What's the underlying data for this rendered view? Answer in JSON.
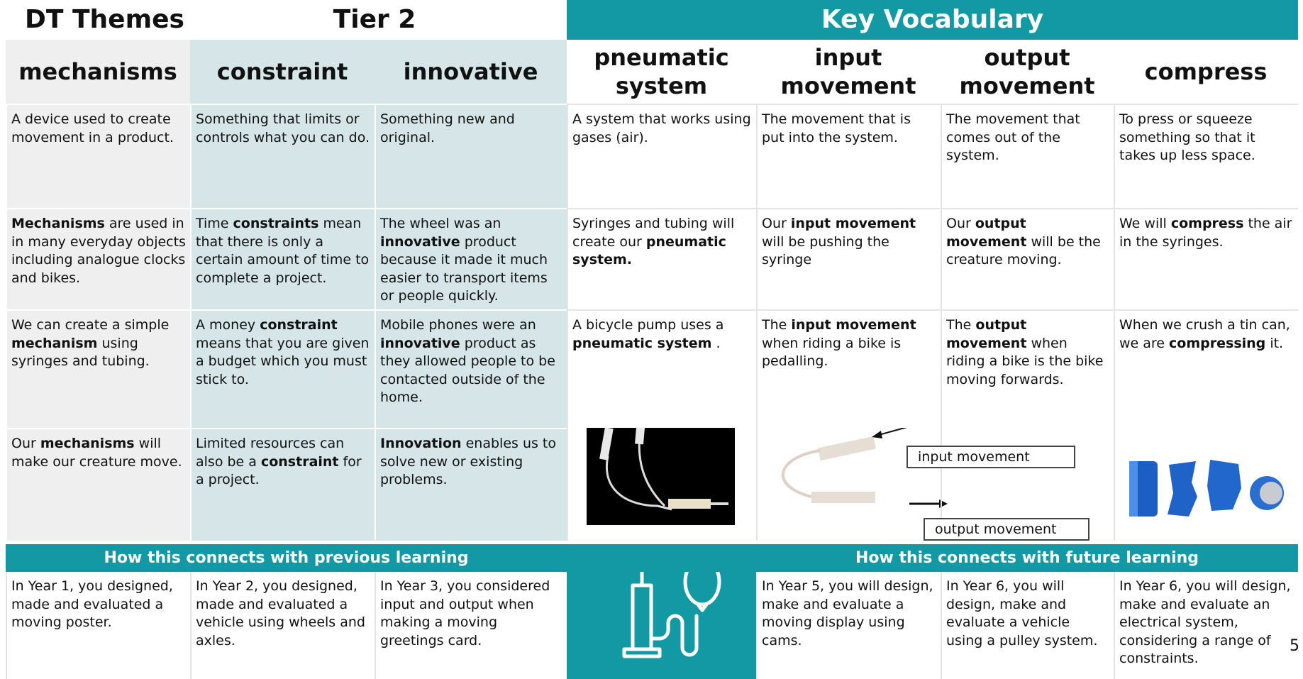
{
  "header": {
    "dt_themes": "DT Themes",
    "tier2": "Tier 2",
    "key_vocabulary": "Key Vocabulary"
  },
  "columns": [
    "mechanisms",
    "constraint",
    "innovative",
    "pneumatic system",
    "input movement",
    "output movement",
    "compress"
  ],
  "rows": [
    [
      [
        "A device used to create movement in a product."
      ],
      [
        "Something that limits or controls what you can do."
      ],
      [
        "Something new and original."
      ],
      [
        "A system that works using gases (air)."
      ],
      [
        "The movement that is put into the system."
      ],
      [
        "The movement that comes out of the system."
      ],
      [
        "To press or squeeze something so that it takes up less space."
      ]
    ],
    [
      [
        {
          "text": "Mechanisms",
          "bold": true
        },
        " are used in in many everyday objects including analogue clocks and bikes."
      ],
      [
        "Time ",
        {
          "text": "constraints",
          "bold": true
        },
        " mean that there is only a certain amount of time to complete a project."
      ],
      [
        "The wheel was an ",
        {
          "text": "innovative",
          "bold": true
        },
        " product because it made it much easier to transport items or people quickly."
      ],
      [
        "Syringes and tubing will create our ",
        {
          "text": "pneumatic system.",
          "bold": true
        }
      ],
      [
        "Our ",
        {
          "text": "input movement",
          "bold": true
        },
        " will be pushing the syringe"
      ],
      [
        "Our ",
        {
          "text": "output movement",
          "bold": true
        },
        " will be the creature moving."
      ],
      [
        "We will ",
        {
          "text": "compress",
          "bold": true
        },
        " the air in the syringes."
      ]
    ],
    [
      [
        "We can create a simple ",
        {
          "text": "mechanism",
          "bold": true
        },
        " using syringes and tubing."
      ],
      [
        "A money ",
        {
          "text": "constraint",
          "bold": true
        },
        " means that you are given a budget which you must stick to."
      ],
      [
        "Mobile phones were an ",
        {
          "text": "innovative",
          "bold": true
        },
        " product as they allowed people to be contacted outside of the home."
      ],
      [
        "A bicycle pump uses a ",
        {
          "text": "pneumatic system",
          "bold": true
        },
        " ."
      ],
      [
        "The ",
        {
          "text": "input movement",
          "bold": true
        },
        " when riding a bike is pedalling."
      ],
      [
        "The ",
        {
          "text": "output movement",
          "bold": true
        },
        " when riding a bike is the bike moving forwards."
      ],
      [
        "When we crush a tin can, we are ",
        {
          "text": "compressing",
          "bold": true
        },
        " it."
      ]
    ],
    [
      [
        "Our ",
        {
          "text": "mechanisms",
          "bold": true
        },
        " will make our creature move."
      ],
      [
        "Limited resources can also be a ",
        {
          "text": "constraint",
          "bold": true
        },
        " for a project."
      ],
      [
        {
          "text": "Innovation",
          "bold": true
        },
        " enables us to solve new or existing problems."
      ]
    ]
  ],
  "diagram_labels": {
    "input": "input movement",
    "output": "output movement"
  },
  "connections": {
    "previous_title": "How this connects with previous learning",
    "future_title": "How this connects with future learning",
    "previous": [
      "In Year 1, you designed, made and evaluated a moving poster.",
      "In Year 2, you designed, made and evaluated a vehicle using wheels and axles.",
      "In Year 3, you considered input and output when making a moving greetings card."
    ],
    "future": [
      "In Year 5, you will design, make and evaluate a moving display using cams.",
      "In Year 6, you will design, make and evaluate a vehicle using a pulley system.",
      "In Year 6, you will design, make and evaluate an electrical system, considering a range of constraints."
    ]
  },
  "page_number": "5"
}
